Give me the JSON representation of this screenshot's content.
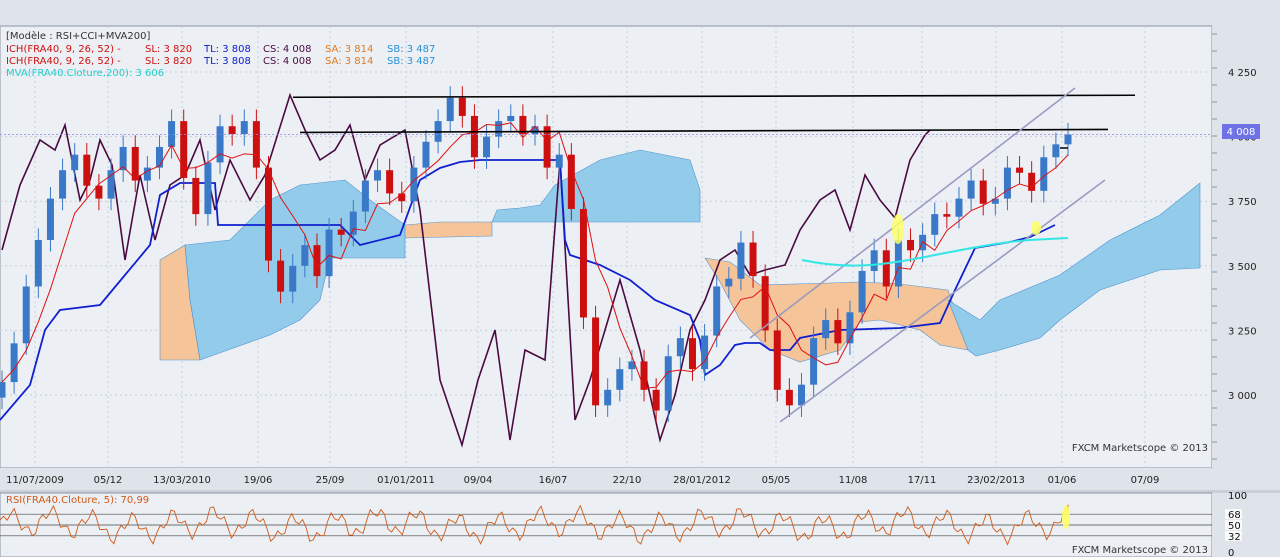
{
  "legend": {
    "model": "[Modèle : RSI+CCI+MVA200]",
    "ich1": {
      "prefix": "ICH(FRA40, 9, 26, 52) -",
      "sl": "SL: 3 820",
      "tl": "TL: 3 808",
      "cs": "CS: 4 008",
      "sa": "SA: 3 814",
      "sb": "SB: 3 487"
    },
    "ich2": {
      "prefix": "ICH(FRA40, 9, 26, 52) -",
      "sl": "SL: 3 820",
      "tl": "TL: 3 808",
      "cs": "CS: 4 008",
      "sa": "SA: 3 814",
      "sb": "SB: 3 487"
    },
    "mva": "MVA(FRA40.Cloture,200): 3 606"
  },
  "watermark_main": "FXCM Marketscope © 2013",
  "watermark_rsi": "FXCM Marketscope © 2013",
  "rsi_legend": "RSI(FRA40.Cloture, 5): 70,99",
  "price_badge": "4 008",
  "colors": {
    "background": "#ecf0f4",
    "up_candle": "#3a78c8",
    "down_candle": "#cc1010",
    "tenkan": "#e01010",
    "kijun": "#1020d0",
    "chikou": "#4a0a40",
    "cloud_bull": "#8fcbea",
    "cloud_bear": "#f6c294",
    "mva": "#33e6e6",
    "trendline": "#9a9ac2",
    "resistance": "#000000",
    "rsi_line": "#d05a18"
  },
  "chart_data": [
    {
      "type": "candlestick",
      "title": "",
      "y_ticks": [
        "4 250",
        "4 000",
        "3 750",
        "3 500",
        "3 250",
        "3 000"
      ],
      "x_ticks": [
        "11/07/2009",
        "05/12",
        "13/03/2010",
        "19/06",
        "25/09",
        "01/01/2011",
        "09/04",
        "16/07",
        "22/10",
        "28/01/2012",
        "05/05",
        "11/08",
        "17/11",
        "23/02/2013",
        "01/06",
        "07/09"
      ],
      "ylim": [
        2840,
        4420
      ],
      "last_price": 4008,
      "resistance_levels": [
        4160,
        4020
      ],
      "indicators": {
        "ichimoku": {
          "SL": 3820,
          "TL": 3808,
          "CS": 4008,
          "SA": 3814,
          "SB": 3487
        },
        "mva200": 3606
      },
      "close_series": [
        3050,
        3200,
        3420,
        3600,
        3760,
        3870,
        3930,
        3810,
        3760,
        3870,
        3960,
        3830,
        3880,
        3960,
        4060,
        3840,
        3700,
        3900,
        4040,
        4010,
        4060,
        3880,
        3520,
        3400,
        3500,
        3580,
        3460,
        3640,
        3620,
        3710,
        3830,
        3870,
        3780,
        3750,
        3880,
        3980,
        4060,
        4150,
        4080,
        3920,
        4000,
        4060,
        4080,
        4010,
        4040,
        3880,
        3930,
        3720,
        3300,
        2960,
        3020,
        3100,
        3130,
        3020,
        2940,
        3150,
        3220,
        3100,
        3230,
        3420,
        3450,
        3590,
        3460,
        3250,
        3020,
        2960,
        3040,
        3220,
        3290,
        3200,
        3320,
        3480,
        3560,
        3420,
        3600,
        3560,
        3620,
        3700,
        3690,
        3760,
        3830,
        3740,
        3760,
        3880,
        3860,
        3790,
        3920,
        3970,
        4008
      ]
    },
    {
      "type": "line",
      "title": "",
      "series": [
        {
          "name": "RSI(FRA40.Cloture, 5)",
          "last": 70.99
        }
      ],
      "y_ticks": [
        "100",
        "68",
        "50",
        "32",
        "0"
      ],
      "ylim": [
        0,
        100
      ]
    }
  ]
}
